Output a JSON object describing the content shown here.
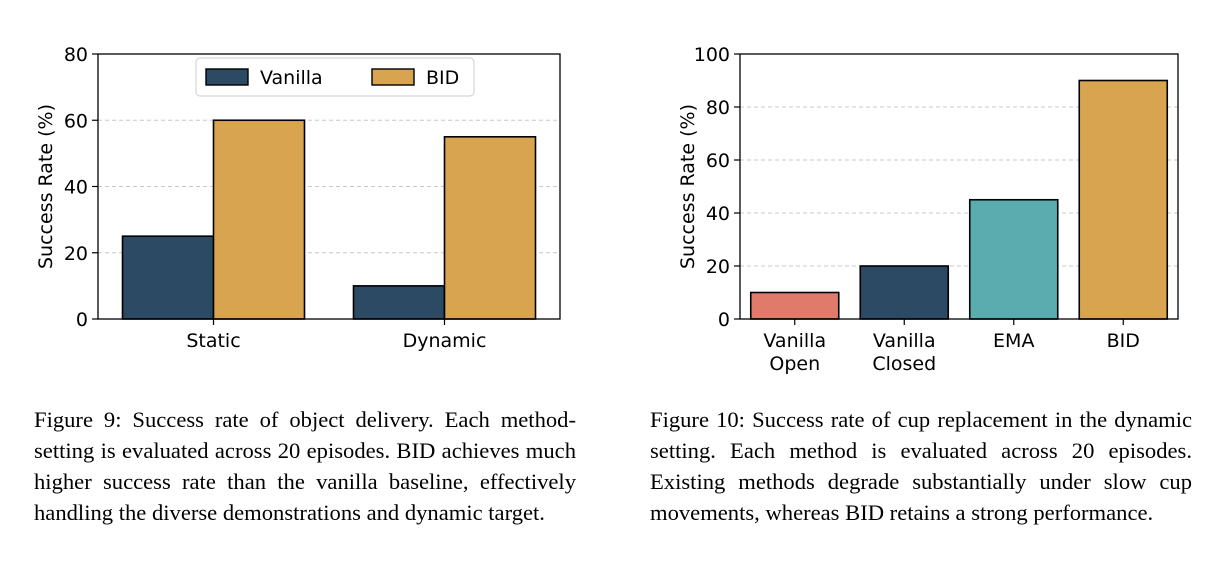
{
  "figures": [
    {
      "caption": "Figure 9: Success rate of object delivery. Each method-setting is evaluated across 20 episodes. BID achieves much higher success rate than the vanilla baseline, effectively handling the diverse demonstrations and dynamic target."
    },
    {
      "caption": "Figure 10: Success rate of cup replacement in the dynamic setting. Each method is evaluated across 20 episodes. Existing methods degrade substantially under slow cup movements, whereas BID retains a strong performance."
    }
  ],
  "chart_data": [
    {
      "type": "bar",
      "title": "",
      "xlabel": "",
      "ylabel": "Success Rate (%)",
      "categories": [
        "Static",
        "Dynamic"
      ],
      "series": [
        {
          "name": "Vanilla",
          "values": [
            25,
            10
          ],
          "color": "#2c4a63"
        },
        {
          "name": "BID",
          "values": [
            60,
            55
          ],
          "color": "#d9a44f"
        }
      ],
      "ylim": [
        0,
        80
      ],
      "yticks": [
        0,
        20,
        40,
        60,
        80
      ],
      "grid": "y-dashed",
      "legend": "top-center"
    },
    {
      "type": "bar",
      "title": "",
      "xlabel": "",
      "ylabel": "Success Rate (%)",
      "categories": [
        [
          "Vanilla",
          "Open"
        ],
        [
          "Vanilla",
          "Closed"
        ],
        [
          "EMA"
        ],
        [
          "BID"
        ]
      ],
      "values": [
        10,
        20,
        45,
        90
      ],
      "colors": [
        "#e07a6a",
        "#2c4a63",
        "#5aacaf",
        "#d9a44f"
      ],
      "ylim": [
        0,
        100
      ],
      "yticks": [
        0,
        20,
        40,
        60,
        80,
        100
      ],
      "grid": "y-dashed"
    }
  ]
}
